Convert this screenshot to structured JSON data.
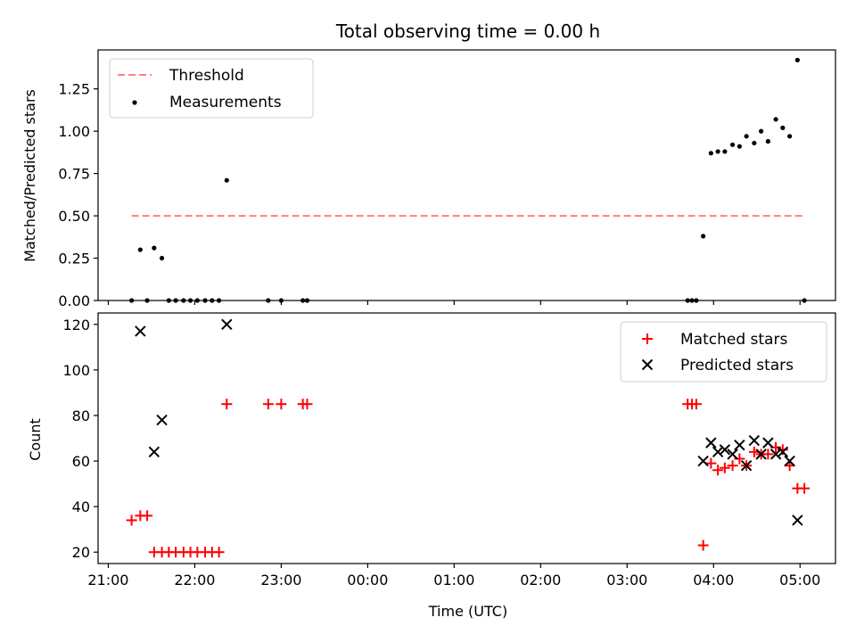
{
  "chart_data": [
    {
      "type": "scatter",
      "title": "Total observing time = 0.00 h",
      "xlabel": "",
      "ylabel": "Matched/Predicted stars",
      "xlim": [
        -0.118,
        8.41
      ],
      "ylim": [
        0.0,
        1.48
      ],
      "yticks": [
        0.0,
        0.25,
        0.5,
        0.75,
        1.0,
        1.25
      ],
      "ytick_labels": [
        "0.00",
        "0.25",
        "0.50",
        "0.75",
        "1.00",
        "1.25"
      ],
      "grid": false,
      "legend": {
        "position": "top-left",
        "entries": [
          "Threshold",
          "Measurements"
        ]
      },
      "threshold": {
        "name": "Threshold",
        "value": 0.5,
        "x_range": [
          0.27,
          8.05
        ],
        "color": "#ff7f7f"
      },
      "series": [
        {
          "name": "Measurements",
          "color": "#000000",
          "points": [
            [
              0.27,
              0.0
            ],
            [
              0.37,
              0.3
            ],
            [
              0.45,
              0.0
            ],
            [
              0.53,
              0.31
            ],
            [
              0.62,
              0.25
            ],
            [
              0.7,
              0.0
            ],
            [
              0.78,
              0.0
            ],
            [
              0.87,
              0.0
            ],
            [
              0.95,
              0.0
            ],
            [
              1.03,
              0.0
            ],
            [
              1.12,
              0.0
            ],
            [
              1.2,
              0.0
            ],
            [
              1.28,
              0.0
            ],
            [
              1.37,
              0.71
            ],
            [
              1.85,
              0.0
            ],
            [
              2.0,
              0.0
            ],
            [
              2.25,
              0.0
            ],
            [
              2.3,
              0.0
            ],
            [
              6.7,
              0.0
            ],
            [
              6.75,
              0.0
            ],
            [
              6.8,
              0.0
            ],
            [
              6.88,
              0.38
            ],
            [
              6.97,
              0.87
            ],
            [
              7.05,
              0.88
            ],
            [
              7.13,
              0.88
            ],
            [
              7.22,
              0.92
            ],
            [
              7.3,
              0.91
            ],
            [
              7.38,
              0.97
            ],
            [
              7.47,
              0.93
            ],
            [
              7.55,
              1.0
            ],
            [
              7.63,
              0.94
            ],
            [
              7.72,
              1.07
            ],
            [
              7.8,
              1.02
            ],
            [
              7.88,
              0.97
            ],
            [
              7.97,
              1.42
            ],
            [
              8.05,
              0.0
            ]
          ]
        }
      ]
    },
    {
      "type": "scatter",
      "title": "",
      "xlabel": "Time (UTC)",
      "ylabel": "Count",
      "xlim": [
        -0.118,
        8.41
      ],
      "ylim": [
        15,
        125
      ],
      "xticks": [
        0,
        1,
        2,
        3,
        4,
        5,
        6,
        7,
        8
      ],
      "xtick_labels": [
        "21:00",
        "22:00",
        "23:00",
        "00:00",
        "01:00",
        "02:00",
        "03:00",
        "04:00",
        "05:00"
      ],
      "yticks": [
        20,
        40,
        60,
        80,
        100,
        120
      ],
      "ytick_labels": [
        "20",
        "40",
        "60",
        "80",
        "100",
        "120"
      ],
      "grid": false,
      "legend": {
        "position": "top-right",
        "entries": [
          "Matched stars",
          "Predicted stars"
        ]
      },
      "series": [
        {
          "name": "Matched stars",
          "marker": "plus",
          "color": "#ff0000",
          "points": [
            [
              0.27,
              34
            ],
            [
              0.37,
              36
            ],
            [
              0.45,
              36
            ],
            [
              0.53,
              20
            ],
            [
              0.62,
              20
            ],
            [
              0.7,
              20
            ],
            [
              0.78,
              20
            ],
            [
              0.87,
              20
            ],
            [
              0.95,
              20
            ],
            [
              1.03,
              20
            ],
            [
              1.12,
              20
            ],
            [
              1.2,
              20
            ],
            [
              1.28,
              20
            ],
            [
              1.37,
              85
            ],
            [
              1.85,
              85
            ],
            [
              2.0,
              85
            ],
            [
              2.25,
              85
            ],
            [
              2.3,
              85
            ],
            [
              6.7,
              85
            ],
            [
              6.75,
              85
            ],
            [
              6.8,
              85
            ],
            [
              6.88,
              23
            ],
            [
              6.97,
              59
            ],
            [
              7.05,
              56
            ],
            [
              7.13,
              57
            ],
            [
              7.22,
              58
            ],
            [
              7.3,
              61
            ],
            [
              7.38,
              58
            ],
            [
              7.47,
              64
            ],
            [
              7.55,
              63
            ],
            [
              7.63,
              63
            ],
            [
              7.72,
              66
            ],
            [
              7.8,
              65
            ],
            [
              7.88,
              58
            ],
            [
              7.97,
              48
            ],
            [
              8.05,
              48
            ]
          ]
        },
        {
          "name": "Predicted stars",
          "marker": "x",
          "color": "#000000",
          "points": [
            [
              0.37,
              117
            ],
            [
              0.53,
              64
            ],
            [
              0.62,
              78
            ],
            [
              1.37,
              120
            ],
            [
              6.88,
              60
            ],
            [
              6.97,
              68
            ],
            [
              7.05,
              64
            ],
            [
              7.13,
              65
            ],
            [
              7.22,
              63
            ],
            [
              7.3,
              67
            ],
            [
              7.38,
              58
            ],
            [
              7.47,
              69
            ],
            [
              7.55,
              63
            ],
            [
              7.63,
              68
            ],
            [
              7.72,
              63
            ],
            [
              7.8,
              64
            ],
            [
              7.88,
              60
            ],
            [
              7.97,
              34
            ]
          ]
        }
      ]
    }
  ]
}
